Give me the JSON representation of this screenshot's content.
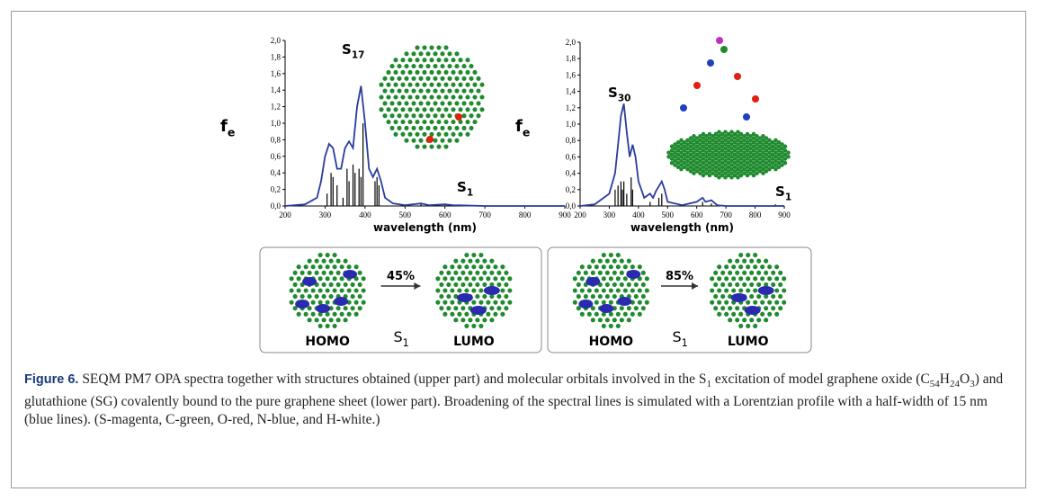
{
  "chart_data": [
    {
      "type": "line",
      "xlabel": "wavelength (nm)",
      "ylabel": {
        "text": "f",
        "sub": "e"
      },
      "xlim": [
        200,
        900
      ],
      "xticks": [
        200,
        300,
        400,
        500,
        600,
        700,
        800,
        900
      ],
      "ylim": [
        0,
        2.0
      ],
      "yticks": [
        {
          "value": 0,
          "label": "0,0"
        },
        {
          "value": 0.2,
          "label": "0,2"
        },
        {
          "value": 0.4,
          "label": "0,4"
        },
        {
          "value": 0.6,
          "label": "0,6"
        },
        {
          "value": 0.8,
          "label": "0,8"
        },
        {
          "value": 1.0,
          "label": "1,0"
        },
        {
          "value": 1.2,
          "label": "1,2"
        },
        {
          "value": 1.4,
          "label": "1,4"
        },
        {
          "value": 1.6,
          "label": "1,6"
        },
        {
          "value": 1.8,
          "label": "1,8"
        },
        {
          "value": 2.0,
          "label": "2,0"
        }
      ],
      "x": [
        200,
        250,
        280,
        290,
        300,
        310,
        320,
        330,
        340,
        350,
        360,
        370,
        380,
        390,
        400,
        410,
        420,
        430,
        440,
        450,
        470,
        500,
        540,
        560,
        600,
        620,
        700,
        800,
        900
      ],
      "series": [
        {
          "color": "#2a3c9c",
          "values": [
            0,
            0.02,
            0.1,
            0.3,
            0.6,
            0.75,
            0.7,
            0.45,
            0.45,
            0.7,
            0.78,
            0.7,
            1.2,
            1.45,
            1.0,
            0.45,
            0.35,
            0.45,
            0.3,
            0.1,
            0.03,
            0.01,
            0.03,
            0.01,
            0.02,
            0.01,
            0,
            0,
            0
          ]
        }
      ],
      "sticks": {
        "color": "#000000",
        "x": [
          305,
          315,
          320,
          330,
          345,
          355,
          360,
          370,
          375,
          385,
          390,
          395,
          425,
          430,
          435,
          540
        ],
        "values": [
          0.15,
          0.4,
          0.35,
          0.25,
          0.1,
          0.45,
          0.3,
          0.5,
          0.4,
          0.45,
          0.35,
          1.0,
          0.3,
          0.35,
          0.25,
          0.03
        ]
      },
      "annotations": [
        {
          "text": "S",
          "sub": "17"
        },
        {
          "text": "S",
          "sub": "1"
        }
      ]
    },
    {
      "type": "line",
      "xlabel": "wavelength (nm)",
      "ylabel": {
        "text": "f",
        "sub": "e"
      },
      "xlim": [
        200,
        900
      ],
      "xticks": [
        200,
        300,
        400,
        500,
        600,
        700,
        800,
        900
      ],
      "ylim": [
        0,
        2.0
      ],
      "yticks": [
        {
          "value": 0,
          "label": "0,0"
        },
        {
          "value": 0.2,
          "label": "0,2"
        },
        {
          "value": 0.4,
          "label": "0,4"
        },
        {
          "value": 0.6,
          "label": "0,6"
        },
        {
          "value": 0.8,
          "label": "0,8"
        },
        {
          "value": 1.0,
          "label": "1,0"
        },
        {
          "value": 1.2,
          "label": "1,2"
        },
        {
          "value": 1.4,
          "label": "1,4"
        },
        {
          "value": 1.6,
          "label": "1,6"
        },
        {
          "value": 1.8,
          "label": "1,8"
        },
        {
          "value": 2.0,
          "label": "2,0"
        }
      ],
      "x": [
        200,
        250,
        300,
        320,
        330,
        340,
        350,
        360,
        370,
        380,
        390,
        400,
        420,
        440,
        450,
        460,
        480,
        490,
        500,
        550,
        600,
        620,
        630,
        650,
        670,
        700,
        800,
        900
      ],
      "series": [
        {
          "color": "#2a3c9c",
          "values": [
            0,
            0.02,
            0.15,
            0.4,
            0.75,
            1.1,
            1.25,
            0.9,
            0.6,
            0.75,
            0.6,
            0.3,
            0.1,
            0.15,
            0.1,
            0.18,
            0.3,
            0.2,
            0.05,
            0.01,
            0.05,
            0.1,
            0.05,
            0.07,
            0.01,
            0,
            0,
            0
          ]
        }
      ],
      "sticks": {
        "color": "#000000",
        "x": [
          320,
          330,
          340,
          345,
          350,
          360,
          375,
          380,
          440,
          470,
          480,
          620,
          650,
          870
        ],
        "values": [
          0.2,
          0.25,
          0.3,
          0.2,
          0.3,
          0.15,
          0.35,
          0.2,
          0.05,
          0.1,
          0.15,
          0.05,
          0.03,
          0.02
        ]
      },
      "annotations": [
        {
          "text": "S",
          "sub": "30"
        },
        {
          "text": "S",
          "sub": "1"
        }
      ]
    }
  ],
  "orbital_panels": [
    {
      "from": "HOMO",
      "to": "LUMO",
      "percent": "45%",
      "state": {
        "text": "S",
        "sub": "1"
      }
    },
    {
      "from": "HOMO",
      "to": "LUMO",
      "percent": "85%",
      "state": {
        "text": "S",
        "sub": "1"
      }
    }
  ],
  "caption": {
    "label": "Figure 6.",
    "parts": [
      {
        "text": " SEQM PM7 OPA spectra together with structures obtained (upper part) and molecular orbitals involved in the S"
      },
      {
        "text": "1",
        "sub": true
      },
      {
        "text": " excitation of model graphene oxide (C"
      },
      {
        "text": "54",
        "sub": true
      },
      {
        "text": "H"
      },
      {
        "text": "24",
        "sub": true
      },
      {
        "text": "O"
      },
      {
        "text": "3",
        "sub": true
      },
      {
        "text": ") and glutathione (SG) covalently bound to the pure graphene sheet (lower part). Broadening of the spectral lines is simulated with a Lorentzian profile with a half-width of 15 nm (blue lines). (S-magenta, C-green, O-red, N-blue, and H-white.)"
      }
    ]
  }
}
